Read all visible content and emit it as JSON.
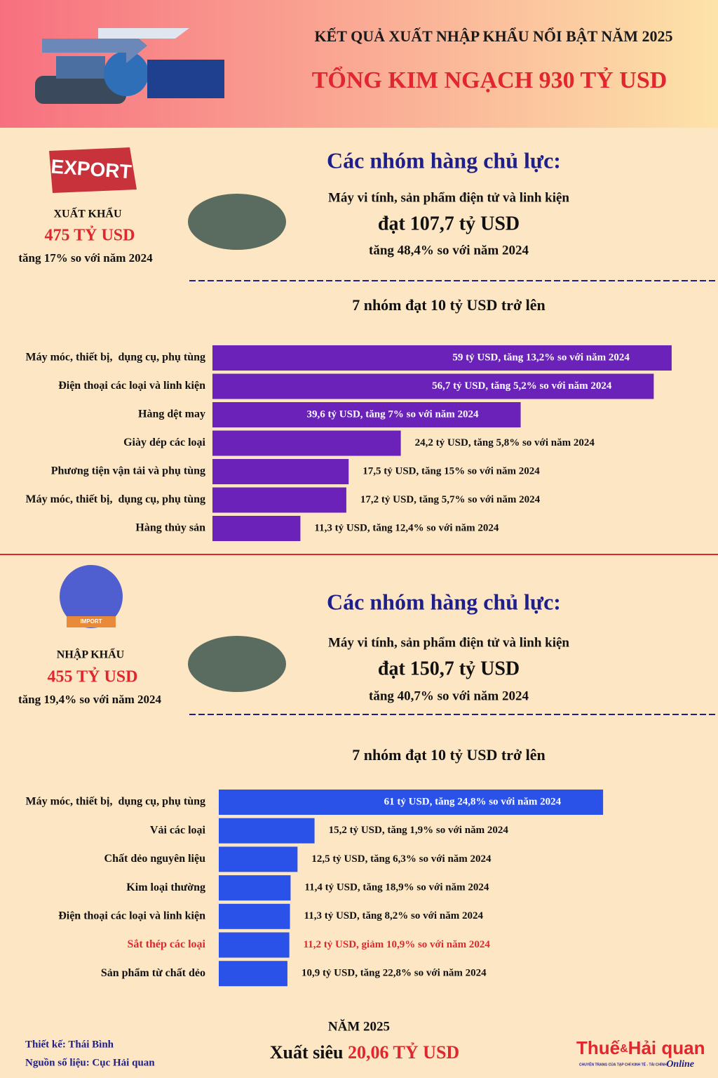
{
  "header": {
    "title": "KẾT QUẢ XUẤT NHẬP KHẨU NỔI BẬT NĂM 2025",
    "subtitle": "TỔNG KIM NGẠCH 930 TỶ USD"
  },
  "export": {
    "label": "XUẤT KHẨU",
    "amount": "475 TỶ USD",
    "growth": "tăng 17% so với năm 2024",
    "heading": "Các nhóm hàng chủ lực:",
    "main_item": "Máy vi tính, sản phẩm điện tử và linh kiện",
    "main_value": "đạt 107,7 tỷ USD",
    "main_growth": "tăng 48,4% so với năm 2024"
  },
  "import": {
    "label": "NHẬP KHẨU",
    "amount": "455 TỶ USD",
    "growth": "tăng 19,4% so với năm 2024",
    "heading": "Các nhóm hàng chủ lực:",
    "main_item": "Máy vi tính, sản phẩm điện tử và linh kiện",
    "main_value": "đạt 150,7 tỷ USD",
    "main_growth": "tăng 40,7% so với năm 2024"
  },
  "footer": {
    "year": "NĂM 2025",
    "surplus_label": "Xuất siêu",
    "surplus_value": "20,06 TỶ USD",
    "design": "Thiết kế: Thái Bình",
    "source": "Nguồn số liệu: Cục Hải quan",
    "logo_a": "Thuế",
    "logo_amp": "&",
    "logo_b": "Hải quan",
    "logo_online": "Online",
    "logo_tagline": "CHUYÊN TRANG CỦA TẠP CHÍ KINH TẾ - TÀI CHÍNH"
  },
  "chart_data": [
    {
      "type": "bar",
      "orientation": "horizontal",
      "title": "7 nhóm đạt 10 tỷ USD trở lên",
      "categories": [
        "Máy móc, thiết bị,  dụng cụ, phụ tùng",
        "Điện thoại các loại và linh kiện",
        "Hàng dệt may",
        "Giày dép các loại",
        "Phương tiện vận tải và phụ tùng",
        "Máy móc, thiết bị,  dụng cụ, phụ tùng",
        "Hàng thủy sản"
      ],
      "values": [
        59,
        56.7,
        39.6,
        24.2,
        17.5,
        17.2,
        11.3
      ],
      "value_labels": [
        "59 tỷ USD, tăng 13,2% so với năm 2024",
        "56,7 tỷ USD, tăng 5,2% so với năm 2024",
        "39,6 tỷ USD, tăng 7% so với năm 2024",
        "24,2 tỷ USD, tăng 5,8% so với năm 2024",
        "17,5 tỷ USD, tăng 15% so với năm 2024",
        "17,2 tỷ USD, tăng 5,7% so với năm 2024",
        "11,3 tỷ USD, tăng 12,4% so với năm 2024"
      ],
      "color": "#6a22b8",
      "label_colors": [
        "#111111",
        "#111111",
        "#111111",
        "#111111",
        "#111111",
        "#111111",
        "#111111"
      ],
      "xlim": [
        0,
        60
      ]
    },
    {
      "type": "bar",
      "orientation": "horizontal",
      "title": "7 nhóm đạt 10 tỷ USD trở lên",
      "categories": [
        "Máy móc, thiết bị,  dụng cụ, phụ tùng",
        "Vải các loại",
        "Chất dẻo nguyên liệu",
        "Kim loại thường",
        "Điện thoại các loại và linh kiện",
        "Sắt thép các loại",
        "Sản phẩm từ chất dẻo"
      ],
      "values": [
        61,
        15.2,
        12.5,
        11.4,
        11.3,
        11.2,
        10.9
      ],
      "value_labels": [
        "61 tỷ USD, tăng 24,8% so với năm 2024",
        "15,2 tỷ USD, tăng 1,9% so với năm 2024",
        "12,5 tỷ USD, tăng 6,3% so với năm 2024",
        "11,4 tỷ USD, tăng 18,9% so với năm 2024",
        "11,3 tỷ USD, tăng 8,2% so với năm 2024",
        "11,2 tỷ USD, giảm 10,9% so với năm 2024",
        "10,9 tỷ USD, tăng 22,8% so với năm 2024"
      ],
      "color": "#2a52e8",
      "label_colors": [
        "#111111",
        "#111111",
        "#111111",
        "#111111",
        "#111111",
        "#e0262e",
        "#111111"
      ],
      "xlim": [
        0,
        70
      ]
    }
  ]
}
